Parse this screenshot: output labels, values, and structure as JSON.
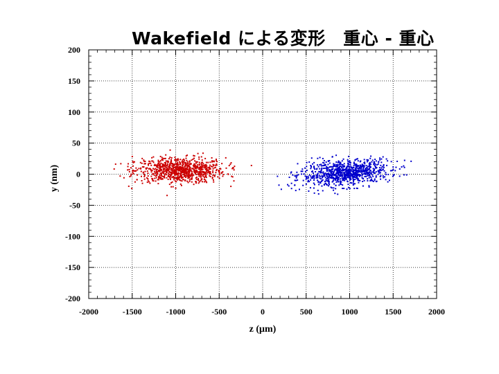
{
  "chart_data": {
    "type": "scatter",
    "title": "Wakefield による変形　重心 - 重心",
    "xlabel": "z (μm)",
    "ylabel": "y (nm)",
    "xlim": [
      -2000,
      2000
    ],
    "ylim": [
      -200,
      200
    ],
    "xticks": [
      "-2000",
      "-1500",
      "-1000",
      "-500",
      "0",
      "500",
      "1000",
      "1500",
      "2000"
    ],
    "yticks": [
      "200",
      "150",
      "100",
      "50",
      "0",
      "-50",
      "-100",
      "-150",
      "-200"
    ],
    "grid": true,
    "series": [
      {
        "name": "red beam",
        "color": "#cc0000",
        "count": 900,
        "z_center": -950,
        "z_spread": 260,
        "z_min": -1800,
        "z_max": -80,
        "y_center": 6,
        "y_spread": 10
      },
      {
        "name": "blue beam",
        "color": "#0000cc",
        "count": 900,
        "z_center": 950,
        "z_spread": 260,
        "z_min": 100,
        "z_max": 1750,
        "y_center": 2,
        "y_slope": 0.012,
        "y_spread": 10
      }
    ]
  }
}
